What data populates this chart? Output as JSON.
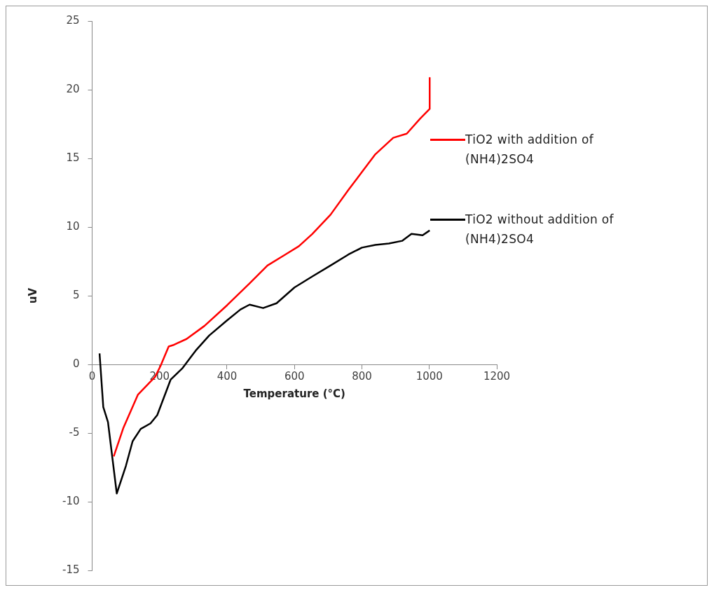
{
  "chart_data": {
    "type": "line",
    "xlabel": "Temperature (°C)",
    "ylabel": "uV",
    "xlim": [
      0,
      1200
    ],
    "xticks": [
      0,
      200,
      400,
      600,
      800,
      1000,
      1200
    ],
    "ylim": [
      -15,
      25
    ],
    "yticks": [
      -15,
      -10,
      -5,
      0,
      5,
      10,
      15,
      20,
      25
    ],
    "grid": false,
    "legend": "right",
    "marker": "none",
    "line_style": "solid",
    "series": [
      {
        "name": "TiO2 with addition of (NH4)2SO4",
        "color": "#ff0000",
        "x": [
          64,
          93,
          136,
          187,
          203,
          227,
          240,
          280,
          333,
          400,
          467,
          520,
          573,
          613,
          653,
          707,
          760,
          800,
          840,
          893,
          933,
          973,
          997,
          1001,
          1001
        ],
        "values": [
          -6.7,
          -4.6,
          -2.2,
          -0.9,
          -0.1,
          1.3,
          1.4,
          1.85,
          2.8,
          4.3,
          5.9,
          7.2,
          8.0,
          8.6,
          9.5,
          10.9,
          12.7,
          14.0,
          15.3,
          16.5,
          16.8,
          17.9,
          18.5,
          18.6,
          20.9
        ]
      },
      {
        "name": "TiO2 without addition of (NH4)2SO4",
        "color": "#000000",
        "x": [
          22,
          33,
          47,
          73,
          100,
          120,
          144,
          173,
          193,
          213,
          233,
          267,
          307,
          347,
          400,
          440,
          467,
          507,
          547,
          600,
          653,
          707,
          760,
          800,
          840,
          880,
          920,
          947,
          980,
          1001
        ],
        "values": [
          0.8,
          -3.1,
          -4.2,
          -9.4,
          -7.4,
          -5.6,
          -4.7,
          -4.3,
          -3.7,
          -2.4,
          -1.1,
          -0.3,
          1.0,
          2.1,
          3.2,
          4.0,
          4.35,
          4.1,
          4.45,
          5.6,
          6.4,
          7.2,
          8.0,
          8.5,
          8.7,
          8.8,
          9.0,
          9.5,
          9.4,
          9.75
        ]
      }
    ]
  }
}
